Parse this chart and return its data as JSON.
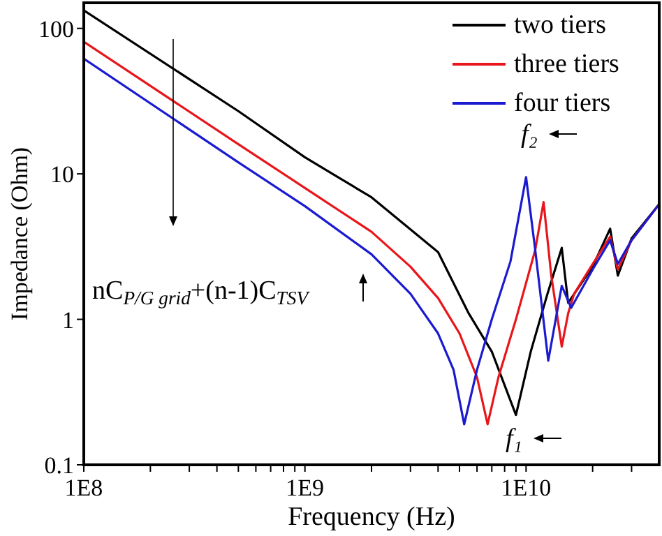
{
  "chart_data": {
    "type": "line",
    "xlabel": "Frequency (Hz)",
    "ylabel": "Impedance (Ohm)",
    "log": "xy",
    "xlim": [
      100000000,
      40000000000
    ],
    "ylim": [
      0.1,
      150
    ],
    "xticks": [
      {
        "value": 100000000,
        "label": "1E8"
      },
      {
        "value": 200000000,
        "label": null
      },
      {
        "value": 300000000,
        "label": null
      },
      {
        "value": 400000000,
        "label": null
      },
      {
        "value": 500000000,
        "label": null
      },
      {
        "value": 600000000,
        "label": null
      },
      {
        "value": 700000000,
        "label": null
      },
      {
        "value": 800000000,
        "label": null
      },
      {
        "value": 900000000,
        "label": null
      },
      {
        "value": 1000000000,
        "label": "1E9"
      },
      {
        "value": 2000000000,
        "label": null
      },
      {
        "value": 3000000000,
        "label": null
      },
      {
        "value": 4000000000,
        "label": null
      },
      {
        "value": 5000000000,
        "label": null
      },
      {
        "value": 6000000000,
        "label": null
      },
      {
        "value": 7000000000,
        "label": null
      },
      {
        "value": 8000000000,
        "label": null
      },
      {
        "value": 9000000000,
        "label": null
      },
      {
        "value": 10000000000,
        "label": "1E10"
      },
      {
        "value": 20000000000,
        "label": null
      },
      {
        "value": 30000000000,
        "label": null
      }
    ],
    "yticks": [
      0.1,
      1,
      10,
      100
    ],
    "grid": false,
    "legend": "top right",
    "marker": "none",
    "line_style": "solid",
    "series": [
      {
        "name": "two tiers",
        "color": "#000000",
        "x": [
          100000000,
          500000000,
          1000000000,
          2000000000,
          4000000000,
          5500000000,
          7000000000,
          9000000000,
          10500000000,
          12500000000,
          14500000000,
          15500000000,
          20000000000,
          24000000000,
          26000000000,
          30000000000,
          40000000000
        ],
        "values": [
          133,
          27,
          13,
          6.9,
          2.9,
          1.1,
          0.6,
          0.22,
          0.6,
          1.5,
          3.1,
          1.3,
          2.3,
          4.2,
          2.0,
          3.6,
          6.2
        ]
      },
      {
        "name": "three tiers",
        "color": "#e8161b",
        "x": [
          100000000,
          500000000,
          1000000000,
          2000000000,
          3000000000,
          4000000000,
          5000000000,
          6000000000,
          6700000000,
          7500000000,
          9000000000,
          11000000000,
          12000000000,
          13000000000,
          14500000000,
          15500000000,
          16500000000,
          20000000000,
          24000000000,
          26000000000,
          30000000000,
          40000000000
        ],
        "values": [
          81,
          16,
          8,
          4,
          2.3,
          1.4,
          0.8,
          0.4,
          0.19,
          0.4,
          1.0,
          3,
          6.4,
          2,
          0.65,
          1.1,
          1.5,
          2.4,
          3.7,
          2.2,
          3.5,
          6.2
        ]
      },
      {
        "name": "four tiers",
        "color": "#1a1ad0",
        "x": [
          100000000,
          500000000,
          1000000000,
          2000000000,
          3000000000,
          4000000000,
          4700000000,
          5250000000,
          6000000000,
          7000000000,
          8500000000,
          10000000000,
          11000000000,
          12600000000,
          14500000000,
          16000000000,
          20000000000,
          24000000000,
          26000000000,
          30000000000,
          40000000000
        ],
        "values": [
          62,
          12,
          6,
          2.8,
          1.5,
          0.8,
          0.45,
          0.19,
          0.45,
          1.0,
          2.5,
          9.5,
          3,
          0.52,
          1.7,
          1.2,
          2.2,
          3.5,
          2.4,
          3.5,
          6.2
        ]
      }
    ],
    "annotations": [
      "f₂",
      "f₁",
      "nC$_{P/G grid}$+(n-1)C$_{TSV}$"
    ]
  }
}
